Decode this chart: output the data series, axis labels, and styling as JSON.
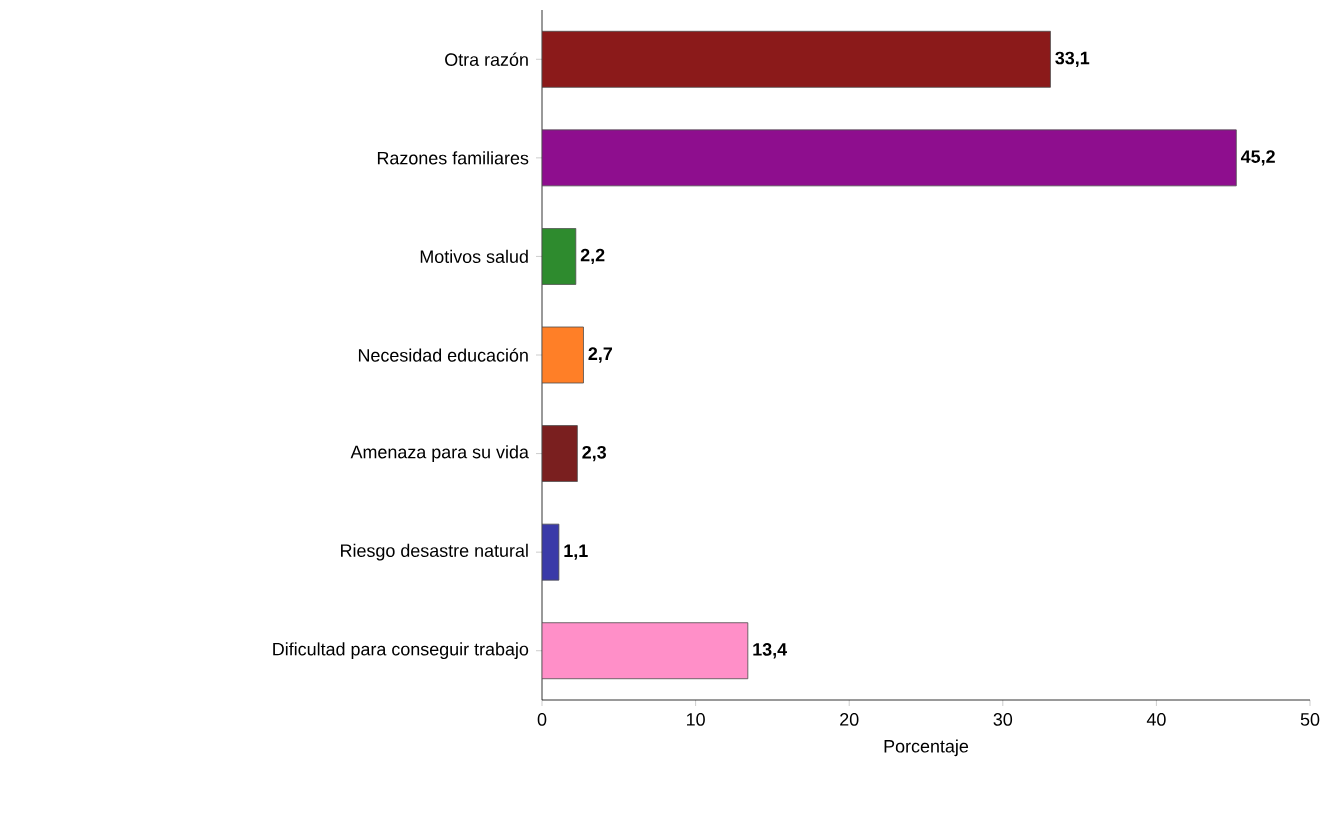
{
  "chart_data": {
    "type": "bar",
    "orientation": "horizontal",
    "xlabel": "Porcentaje",
    "categories": [
      "Otra razón",
      "Razones familiares",
      "Motivos salud",
      "Necesidad educación",
      "Amenaza para su vida",
      "Riesgo desastre natural",
      "Dificultad para conseguir trabajo"
    ],
    "values": [
      33.1,
      45.2,
      2.2,
      2.7,
      2.3,
      1.1,
      13.4
    ],
    "value_labels": [
      "33,1",
      "45,2",
      "2,2",
      "2,7",
      "2,3",
      "1,1",
      "13,4"
    ],
    "colors": [
      "#8b1a1a",
      "#8e0e8e",
      "#2e8b2e",
      "#ff7f27",
      "#7a1f1f",
      "#3a3aa8",
      "#ff8fc8"
    ],
    "xlim": [
      0,
      50
    ],
    "xticks": [
      0,
      10,
      20,
      30,
      40,
      50
    ]
  }
}
